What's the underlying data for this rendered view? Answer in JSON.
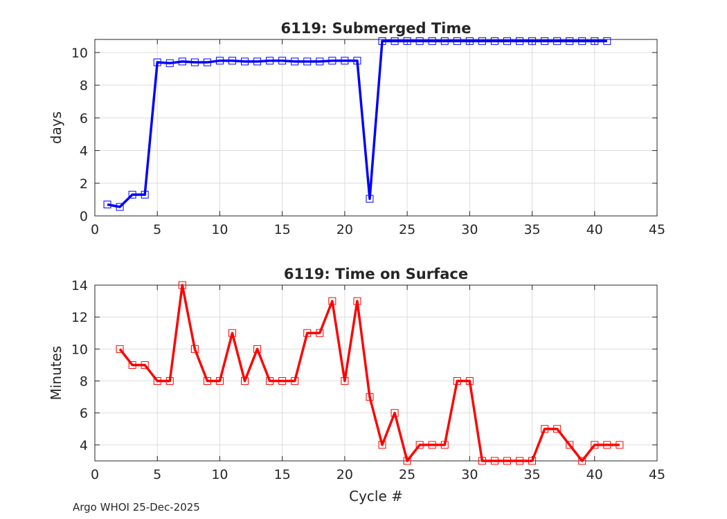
{
  "footer": "Argo WHOI 25-Dec-2025",
  "colors": {
    "top_series": "#0000ff",
    "bottom_series": "#ff0000",
    "grid": "#dcdcdc",
    "axis": "#262626"
  },
  "chart_data": [
    {
      "type": "line",
      "title": "6119: Submerged Time",
      "xlabel": "",
      "ylabel": "days",
      "xlim": [
        0,
        45
      ],
      "ylim": [
        0,
        10.8
      ],
      "xticks": [
        0,
        5,
        10,
        15,
        20,
        25,
        30,
        35,
        40,
        45
      ],
      "yticks": [
        0,
        2,
        4,
        6,
        8,
        10
      ],
      "grid": true,
      "marker": "square",
      "series": [
        {
          "name": "Submerged Time",
          "x": [
            1,
            2,
            3,
            4,
            5,
            6,
            7,
            8,
            9,
            10,
            11,
            12,
            13,
            14,
            15,
            16,
            17,
            18,
            19,
            20,
            21,
            22,
            23,
            24,
            25,
            26,
            27,
            28,
            29,
            30,
            31,
            32,
            33,
            34,
            35,
            36,
            37,
            38,
            39,
            40,
            41
          ],
          "y": [
            0.7,
            0.55,
            1.3,
            1.3,
            9.4,
            9.35,
            9.45,
            9.4,
            9.4,
            9.5,
            9.5,
            9.45,
            9.45,
            9.5,
            9.5,
            9.45,
            9.45,
            9.45,
            9.5,
            9.5,
            9.5,
            1.05,
            10.7,
            10.7,
            10.7,
            10.7,
            10.7,
            10.7,
            10.7,
            10.7,
            10.7,
            10.7,
            10.7,
            10.7,
            10.7,
            10.7,
            10.7,
            10.7,
            10.7,
            10.7,
            10.7
          ]
        }
      ]
    },
    {
      "type": "line",
      "title": "6119: Time on Surface",
      "xlabel": "Cycle #",
      "ylabel": "Minutes",
      "xlim": [
        0,
        45
      ],
      "ylim": [
        3,
        14
      ],
      "xticks": [
        0,
        5,
        10,
        15,
        20,
        25,
        30,
        35,
        40,
        45
      ],
      "yticks": [
        4,
        6,
        8,
        10,
        12,
        14
      ],
      "grid": true,
      "marker": "square",
      "series": [
        {
          "name": "Time on Surface",
          "x": [
            2,
            3,
            4,
            5,
            6,
            7,
            8,
            9,
            10,
            11,
            12,
            13,
            14,
            15,
            16,
            17,
            18,
            19,
            20,
            21,
            22,
            23,
            24,
            25,
            26,
            27,
            28,
            29,
            30,
            31,
            32,
            33,
            34,
            35,
            36,
            37,
            38,
            39,
            40,
            41,
            42
          ],
          "y": [
            10,
            9,
            9,
            8,
            8,
            14,
            10,
            8,
            8,
            11,
            8,
            10,
            8,
            8,
            8,
            11,
            11,
            13,
            8,
            13,
            7,
            4,
            6,
            3,
            4,
            4,
            4,
            8,
            8,
            3,
            3,
            3,
            3,
            3,
            5,
            5,
            4,
            3,
            4,
            4,
            4
          ]
        }
      ]
    }
  ]
}
